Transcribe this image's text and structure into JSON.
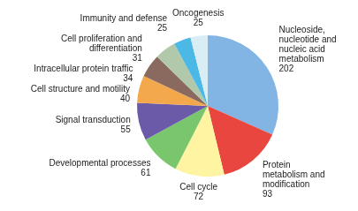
{
  "chart_data": {
    "type": "pie",
    "categories": [
      "Nucleoside, nucleotide and nucleic acid metabolism",
      "Protein metabolism and modification",
      "Cell cycle",
      "Developmental processes",
      "Signal transduction",
      "Cell structure and motility",
      "Intracellular protein traffic",
      "Cell proliferation and differentiation",
      "Immunity and defense",
      "Oncogenesis"
    ],
    "values": [
      202,
      93,
      72,
      61,
      55,
      40,
      34,
      31,
      25,
      25
    ],
    "colors": [
      "#82b4e4",
      "#e8463e",
      "#fff4a2",
      "#7ac66c",
      "#6a5aa8",
      "#f4a84c",
      "#8a6a5e",
      "#b2c8aa",
      "#4cb8e6",
      "#d8edf4"
    ],
    "data_labels": true
  }
}
